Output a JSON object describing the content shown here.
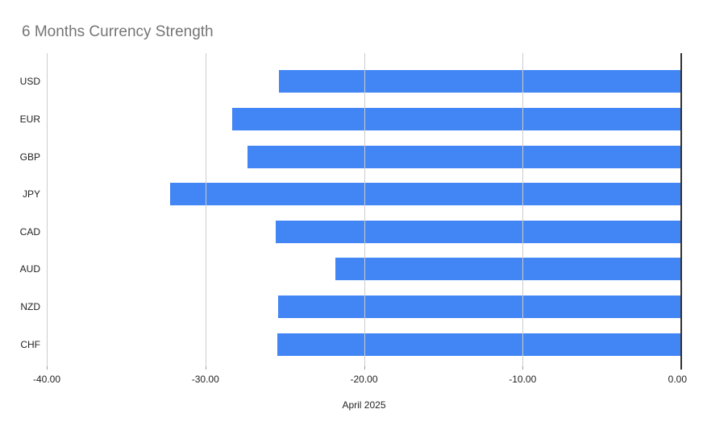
{
  "chart_data": {
    "type": "bar",
    "orientation": "horizontal",
    "title": "6 Months Currency Strength",
    "categories": [
      "USD",
      "EUR",
      "GBP",
      "JPY",
      "CAD",
      "AUD",
      "NZD",
      "CHF"
    ],
    "values": [
      -25.31,
      -28.26,
      -27.29,
      -32.16,
      -25.51,
      -21.74,
      -25.36,
      -25.43
    ],
    "xlabel": "April 2025",
    "ylabel": "",
    "xlim": [
      -40,
      0
    ],
    "x_ticks": [
      -40,
      -30,
      -20,
      -10,
      0
    ],
    "x_tick_labels": [
      "-40.00",
      "-30.00",
      "-20.00",
      "-10.00",
      "0.00"
    ],
    "grid": "vertical",
    "legend": "none"
  },
  "colors": {
    "bar": "#4285f4",
    "gridline": "#cccccc",
    "tick_mark": "#9e9e9e",
    "zero_axis": "#333333",
    "title_text": "#757575",
    "label_text": "#222222",
    "background": "#ffffff"
  }
}
